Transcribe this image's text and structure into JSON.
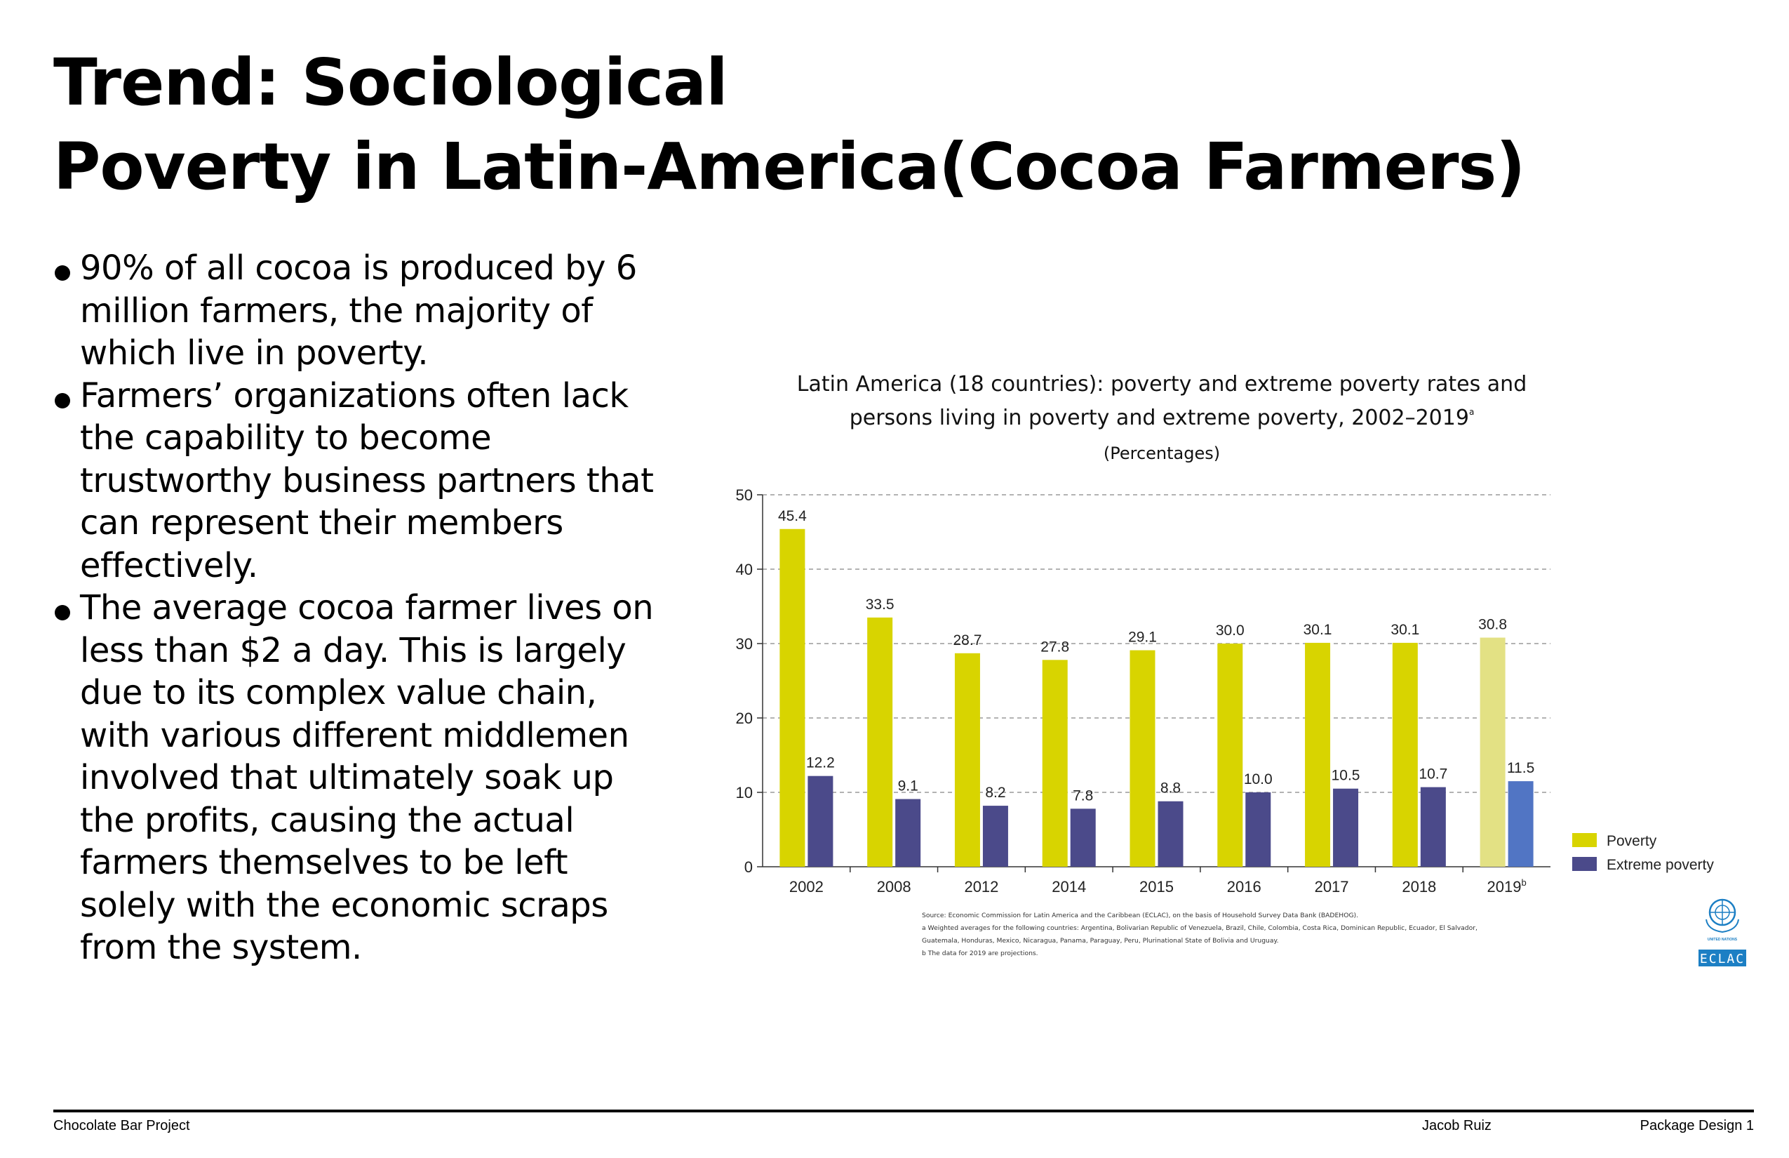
{
  "page": {
    "title_lines": [
      "Trend: Sociological",
      "Poverty in Latin-America(Cocoa Farmers)"
    ],
    "bullets": [
      "90% of all cocoa is produced by 6 million farmers, the majority of which live in poverty.",
      "Farmers’ organizations often lack the capability to become trustworthy business partners that can represent their members effectively.",
      "The average cocoa farmer lives on less than $2 a day. This is largely due to its complex value chain, with various different middlemen involved that ultimately soak up the profits, causing the actual farmers themselves to be left solely with the economic scraps from the system."
    ],
    "footer": {
      "left": "Chocolate Bar Project",
      "author": "Jacob Ruiz",
      "right": "Package Design 1"
    }
  },
  "chart_data": {
    "type": "bar",
    "title": "Latin America (18 countries): poverty and extreme poverty rates and persons living in poverty and extreme poverty, 2002–2019",
    "title_lines": [
      "Latin America (18 countries): poverty and extreme poverty rates and",
      "persons living in poverty and extreme poverty, 2002–2019"
    ],
    "title_marker": "a",
    "subtitle": "(Percentages)",
    "categories": [
      "2002",
      "2008",
      "2012",
      "2014",
      "2015",
      "2016",
      "2017",
      "2018",
      "2019"
    ],
    "category_markers": [
      "",
      "",
      "",
      "",
      "",
      "",
      "",
      "",
      "b"
    ],
    "projected_categories": [
      "2019"
    ],
    "series": [
      {
        "name": "Poverty",
        "values": [
          45.4,
          33.5,
          28.7,
          27.8,
          29.1,
          30.0,
          30.1,
          30.1,
          30.8
        ],
        "labels": [
          "45.4",
          "33.5",
          "28.7",
          "27.8",
          "29.1",
          "30.0",
          "30.1",
          "30.1",
          "30.8"
        ],
        "color": "#d8d400",
        "projected_color": "#e3e184"
      },
      {
        "name": "Extreme poverty",
        "values": [
          12.2,
          9.1,
          8.2,
          7.8,
          8.8,
          10.0,
          10.5,
          10.7,
          11.5
        ],
        "labels": [
          "12.2",
          "9.1",
          "8.2",
          "7.8",
          "8.8",
          "10.0",
          "10.5",
          "10.7",
          "11.5"
        ],
        "color": "#4b4a8a",
        "projected_color": "#5175c4"
      }
    ],
    "ylim": [
      0,
      50
    ],
    "yticks": [
      0,
      10,
      20,
      30,
      40,
      50
    ],
    "ytick_labels": [
      "0",
      "10",
      "20",
      "30",
      "40",
      "50"
    ],
    "grid": true,
    "grid_style": "dashed",
    "legend": "right",
    "notes": [
      "Source: Economic Commission for Latin America and the Caribbean (ECLAC), on the basis of Household Survey Data Bank (BADEHOG).",
      "a Weighted averages for the following countries: Argentina, Bolivarian Republic of Venezuela, Brazil, Chile, Colombia, Costa Rica, Dominican Republic, Ecuador, El Salvador,",
      "Guatemala, Honduras, Mexico, Nicaragua, Panama, Paraguay, Peru, Plurinational State of Bolivia and Uruguay.",
      "b The data for 2019 are projections."
    ],
    "logo": {
      "text": "ECLAC",
      "subtext": "UNITED NATIONS",
      "color": "#1c7fc4",
      "icon": "un-emblem-icon"
    }
  }
}
